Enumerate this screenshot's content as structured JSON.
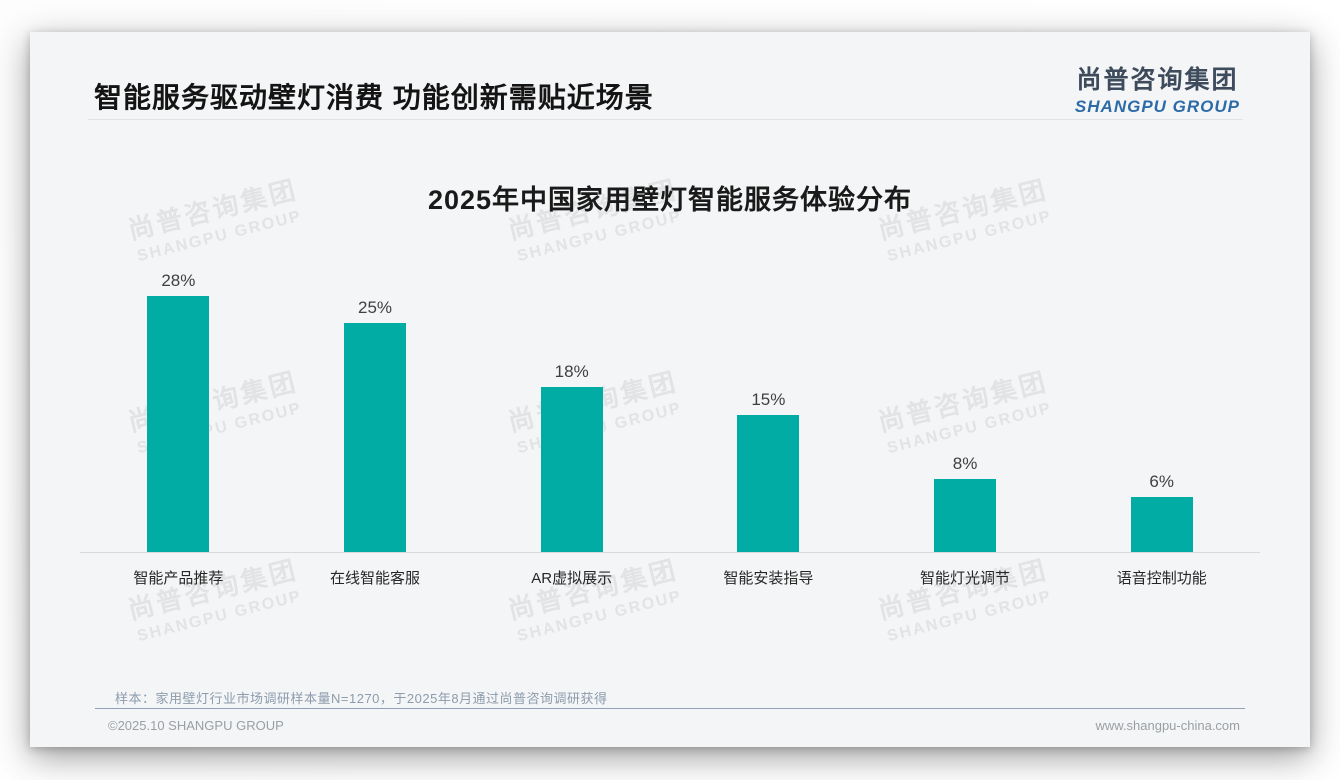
{
  "header": {
    "title": "智能服务驱动壁灯消费 功能创新需贴近场景"
  },
  "brand": {
    "name_cn": "尚普咨询集团",
    "name_en": "SHANGPU GROUP",
    "color_cn": "#3d4b5c",
    "color_en": "#2c6ba8"
  },
  "watermark": {
    "line1": "尚普咨询集团",
    "line2": "SHANGPU GROUP"
  },
  "chart_data": {
    "type": "bar",
    "title": "2025年中国家用壁灯智能服务体验分布",
    "categories": [
      "智能产品推荐",
      "在线智能客服",
      "AR虚拟展示",
      "智能安装指导",
      "智能灯光调节",
      "语音控制功能"
    ],
    "values": [
      28,
      25,
      18,
      15,
      8,
      6
    ],
    "value_labels": [
      "28%",
      "25%",
      "18%",
      "15%",
      "8%",
      "6%"
    ],
    "bar_color": "#01aca5",
    "xlabel": "",
    "ylabel": "",
    "ylim": [
      0,
      30
    ],
    "grid": false,
    "legend": false
  },
  "footer": {
    "note": "样本：家用壁灯行业市场调研样本量N=1270，于2025年8月通过尚普咨询调研获得",
    "copyright": "©2025.10 SHANGPU GROUP",
    "website": "www.shangpu-china.com"
  }
}
